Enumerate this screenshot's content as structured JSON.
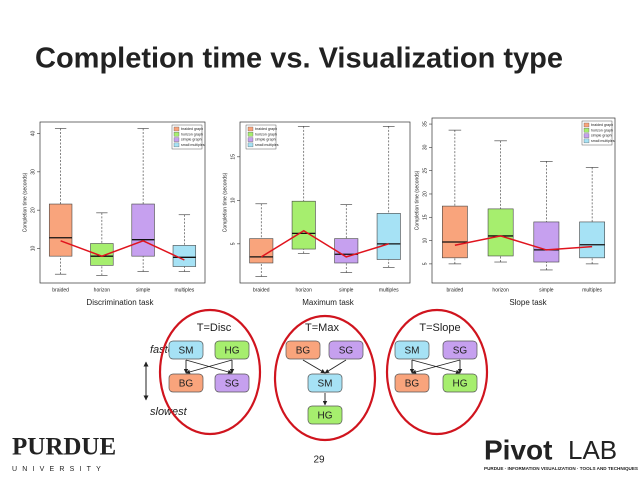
{
  "title": "Completion time vs. Visualization type",
  "chart_data": [
    {
      "type": "box",
      "task": "Discrimination task",
      "ylabel": "Completion time (seconds)",
      "categories": [
        "braided",
        "horizon",
        "simple",
        "multiples"
      ],
      "series_names": [
        "braided graph",
        "horizon graph",
        "simple graph",
        "small multiples"
      ],
      "colors": [
        "#f9a47c",
        "#a6ee6e",
        "#c6a0ef",
        "#a6e2f5"
      ],
      "low": [
        3.3,
        3,
        4,
        4
      ],
      "q1": [
        8,
        5.6,
        8,
        5.3
      ],
      "median": [
        12.8,
        8,
        12.3,
        7.7
      ],
      "q3": [
        21.6,
        11.3,
        21.6,
        10.8
      ],
      "high": [
        41.3,
        19.3,
        41.3,
        18.8
      ],
      "means": [
        12,
        8,
        12,
        7
      ],
      "mean_color": "#e0141e",
      "ylim": [
        1,
        43
      ],
      "yticks": [
        10,
        20,
        30,
        40
      ],
      "legend": "upper right"
    },
    {
      "type": "box",
      "task": "Maximum task",
      "ylabel": "Completion time (seconds)",
      "categories": [
        "braided",
        "horizon",
        "simple",
        "multiples"
      ],
      "series_names": [
        "braided graph",
        "horizon graph",
        "simple graph",
        "small multiples"
      ],
      "colors": [
        "#f9a47c",
        "#a6ee6e",
        "#c6a0ef",
        "#a6e2f5"
      ],
      "low": [
        1.25,
        3.9,
        1.7,
        2.3
      ],
      "q1": [
        2.8,
        4.4,
        2.8,
        3.2
      ],
      "median": [
        3.5,
        6.2,
        3.8,
        5
      ],
      "q3": [
        5.6,
        9.9,
        5.6,
        8.5
      ],
      "high": [
        9.6,
        18.5,
        9.5,
        18.5
      ],
      "means": [
        3.5,
        6.5,
        3.5,
        5
      ],
      "mean_color": "#e0141e",
      "ylim": [
        0.5,
        19
      ],
      "yticks": [
        5,
        10,
        15
      ],
      "legend": "upper left"
    },
    {
      "type": "box",
      "task": "Slope task",
      "ylabel": "Completion time (seconds)",
      "categories": [
        "braided",
        "horizon",
        "simple",
        "multiples"
      ],
      "series_names": [
        "braided graph",
        "horizon graph",
        "simple graph",
        "small multiples"
      ],
      "colors": [
        "#f9a47c",
        "#a6ee6e",
        "#c6a0ef",
        "#a6e2f5"
      ],
      "low": [
        5,
        5.4,
        3.7,
        5
      ],
      "q1": [
        6.3,
        6.7,
        5.4,
        6.3
      ],
      "median": [
        9.7,
        11,
        8,
        9.1
      ],
      "q3": [
        17.4,
        16.8,
        14,
        14
      ],
      "high": [
        33.7,
        31.4,
        27,
        25.7
      ],
      "means": [
        9,
        11,
        8,
        8.7
      ],
      "mean_color": "#e0141e",
      "ylim": [
        0.9,
        36.3
      ],
      "yticks": [
        5,
        10,
        15,
        20,
        25,
        30,
        35
      ],
      "legend": "upper right"
    }
  ],
  "diagram": {
    "fastest": "fastest",
    "slowest": "slowest",
    "panels": [
      {
        "title": "T=Disc",
        "nodes": [
          {
            "label": "SM",
            "color": "#a6e2f5"
          },
          {
            "label": "HG",
            "color": "#a6ee6e"
          },
          {
            "label": "BG",
            "color": "#f9a47c"
          },
          {
            "label": "SG",
            "color": "#c6a0ef"
          }
        ]
      },
      {
        "title": "T=Max",
        "nodes": [
          {
            "label": "BG",
            "color": "#f9a47c"
          },
          {
            "label": "SG",
            "color": "#c6a0ef"
          },
          {
            "label": "SM",
            "color": "#a6e2f5"
          },
          {
            "label": "HG",
            "color": "#a6ee6e"
          }
        ]
      },
      {
        "title": "T=Slope",
        "nodes": [
          {
            "label": "SM",
            "color": "#a6e2f5"
          },
          {
            "label": "SG",
            "color": "#c6a0ef"
          },
          {
            "label": "BG",
            "color": "#f9a47c"
          },
          {
            "label": "HG",
            "color": "#a6ee6e"
          }
        ]
      }
    ]
  },
  "footer": {
    "page": "29",
    "purdue": "PURDUE",
    "university": "UNIVERSITY",
    "pivot": "Pivot",
    "lab": "LAB",
    "tagline": "PURDUE · INFORMATION VISUALIZATION · TOOLS AND TECHNIQUES"
  }
}
